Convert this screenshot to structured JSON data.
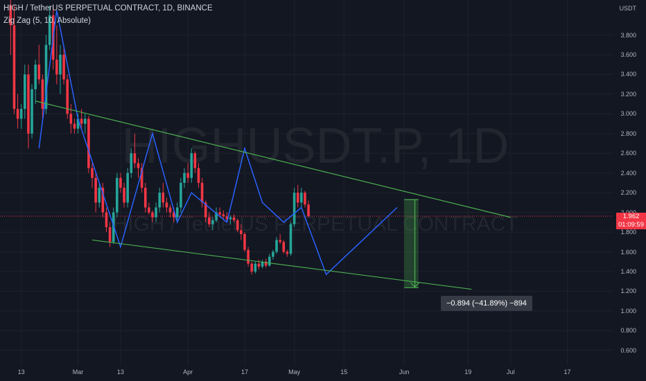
{
  "header": {
    "title": "HIGH / TetherUS PERPETUAL CONTRACT, 1D, BINANCE",
    "indicator": "Zig Zag (5, 10, Absolute)"
  },
  "watermark": {
    "symbol": "HIGHUSDT.P, 1D",
    "name": "HIGH / TetherUS PERPETUAL CONTRACT"
  },
  "price_axis": {
    "currency": "USDT",
    "last_price": "1.962",
    "countdown": "01:09:59"
  },
  "measurement": {
    "label": "−0.894 (−41.89%) −894"
  },
  "colors": {
    "background": "#131722",
    "grid": "#1e222d",
    "up": "#26a69a",
    "down": "#f23645",
    "zigzag": "#2962ff",
    "trendline": "#4caf50",
    "measure_fill": "#4caf50"
  },
  "chart_data": {
    "type": "candlestick",
    "symbol": "HIGH / TetherUS PERPETUAL CONTRACT",
    "interval": "1D",
    "exchange": "BINANCE",
    "ylim": [
      0.5,
      4.05
    ],
    "y_ticks": [
      0.6,
      0.8,
      1.0,
      1.2,
      1.4,
      1.6,
      1.8,
      2.0,
      2.2,
      2.4,
      2.6,
      2.8,
      3.0,
      3.2,
      3.4,
      3.6,
      3.8
    ],
    "y_tick_labels": [
      "0.600",
      "0.800",
      "1.000",
      "1.200",
      "1.400",
      "1.600",
      "1.800",
      "2.000",
      "2.200",
      "2.400",
      "2.600",
      "2.800",
      "3.000",
      "3.200",
      "3.400",
      "3.600",
      "3.800"
    ],
    "x_start": "2023-02-07",
    "x_end": "2023-07-30",
    "x_ticks": [
      {
        "date": "2023-02-13",
        "label": "13"
      },
      {
        "date": "2023-03-01",
        "label": "Mar"
      },
      {
        "date": "2023-03-13",
        "label": "13"
      },
      {
        "date": "2023-04-01",
        "label": "Apr"
      },
      {
        "date": "2023-04-17",
        "label": "17"
      },
      {
        "date": "2023-05-01",
        "label": "May"
      },
      {
        "date": "2023-05-15",
        "label": "15"
      },
      {
        "date": "2023-06-01",
        "label": "Jun"
      },
      {
        "date": "2023-06-19",
        "label": "19"
      },
      {
        "date": "2023-07-01",
        "label": "Jul"
      },
      {
        "date": "2023-07-17",
        "label": "17"
      }
    ],
    "candles_start": "2023-02-10",
    "candles": [
      [
        4.1,
        4.3,
        3.6,
        3.9
      ],
      [
        3.9,
        4.1,
        3.0,
        3.05
      ],
      [
        3.05,
        3.2,
        2.85,
        2.95
      ],
      [
        2.95,
        3.1,
        2.85,
        3.05
      ],
      [
        3.05,
        3.5,
        2.95,
        3.4
      ],
      [
        3.4,
        3.5,
        2.65,
        2.8
      ],
      [
        2.8,
        3.3,
        2.75,
        3.25
      ],
      [
        3.25,
        3.55,
        3.1,
        3.5
      ],
      [
        3.5,
        3.7,
        3.3,
        3.35
      ],
      [
        3.35,
        3.4,
        2.95,
        3.05
      ],
      [
        3.05,
        3.8,
        3.0,
        3.7
      ],
      [
        3.7,
        4.1,
        3.65,
        4.0
      ],
      [
        4.0,
        4.1,
        3.45,
        3.55
      ],
      [
        3.55,
        3.9,
        3.3,
        3.4
      ],
      [
        3.4,
        3.7,
        3.2,
        3.6
      ],
      [
        3.6,
        3.7,
        3.3,
        3.35
      ],
      [
        3.35,
        3.4,
        2.95,
        3.0
      ],
      [
        3.0,
        3.1,
        2.8,
        2.9
      ],
      [
        2.9,
        2.95,
        2.8,
        2.85
      ],
      [
        2.85,
        3.0,
        2.8,
        2.95
      ],
      [
        2.95,
        3.05,
        2.85,
        2.9
      ],
      [
        2.9,
        3.0,
        2.8,
        2.95
      ],
      [
        2.95,
        2.98,
        2.4,
        2.45
      ],
      [
        2.45,
        2.5,
        2.25,
        2.35
      ],
      [
        2.35,
        2.4,
        2.0,
        2.1
      ],
      [
        2.1,
        2.3,
        2.05,
        2.25
      ],
      [
        2.25,
        2.3,
        1.95,
        2.0
      ],
      [
        2.0,
        2.05,
        1.8,
        1.85
      ],
      [
        1.85,
        1.9,
        1.65,
        1.7
      ],
      [
        1.7,
        2.05,
        1.68,
        2.0
      ],
      [
        2.0,
        2.4,
        1.95,
        2.35
      ],
      [
        2.35,
        2.4,
        2.2,
        2.25
      ],
      [
        2.25,
        2.3,
        2.05,
        2.1
      ],
      [
        2.1,
        2.45,
        2.05,
        2.4
      ],
      [
        2.4,
        2.65,
        2.35,
        2.6
      ],
      [
        2.6,
        2.8,
        2.45,
        2.5
      ],
      [
        2.5,
        2.55,
        2.35,
        2.45
      ],
      [
        2.45,
        2.5,
        2.2,
        2.25
      ],
      [
        2.25,
        2.3,
        2.0,
        2.05
      ],
      [
        2.05,
        2.1,
        1.98,
        2.0
      ],
      [
        2.0,
        2.02,
        1.9,
        1.95
      ],
      [
        1.95,
        2.1,
        1.9,
        2.05
      ],
      [
        2.05,
        2.25,
        2.0,
        2.2
      ],
      [
        2.2,
        2.3,
        2.05,
        2.1
      ],
      [
        2.1,
        2.15,
        2.0,
        2.05
      ],
      [
        2.05,
        2.08,
        1.95,
        2.0
      ],
      [
        2.0,
        2.05,
        1.9,
        1.95
      ],
      [
        1.95,
        2.1,
        1.92,
        2.05
      ],
      [
        2.05,
        2.35,
        2.0,
        2.3
      ],
      [
        2.3,
        2.45,
        2.25,
        2.4
      ],
      [
        2.4,
        2.5,
        2.3,
        2.35
      ],
      [
        2.35,
        2.65,
        2.3,
        2.6
      ],
      [
        2.6,
        2.62,
        2.4,
        2.45
      ],
      [
        2.45,
        2.5,
        2.25,
        2.3
      ],
      [
        2.3,
        2.35,
        2.05,
        2.1
      ],
      [
        2.1,
        2.12,
        1.9,
        1.95
      ],
      [
        1.95,
        2.0,
        1.85,
        1.88
      ],
      [
        1.88,
        1.95,
        1.82,
        1.92
      ],
      [
        1.92,
        2.05,
        1.9,
        2.0
      ],
      [
        2.0,
        2.05,
        1.95,
        1.98
      ],
      [
        1.98,
        2.02,
        1.93,
        1.96
      ],
      [
        1.96,
        2.0,
        1.9,
        1.93
      ],
      [
        1.93,
        1.97,
        1.88,
        1.95
      ],
      [
        1.95,
        1.98,
        1.9,
        1.92
      ],
      [
        1.92,
        1.94,
        1.8,
        1.82
      ],
      [
        1.82,
        1.88,
        1.72,
        1.78
      ],
      [
        1.78,
        1.8,
        1.6,
        1.62
      ],
      [
        1.62,
        1.65,
        1.45,
        1.48
      ],
      [
        1.48,
        1.5,
        1.37,
        1.4
      ],
      [
        1.4,
        1.5,
        1.38,
        1.48
      ],
      [
        1.48,
        1.52,
        1.42,
        1.45
      ],
      [
        1.45,
        1.52,
        1.43,
        1.5
      ],
      [
        1.5,
        1.53,
        1.44,
        1.46
      ],
      [
        1.46,
        1.58,
        1.45,
        1.55
      ],
      [
        1.55,
        1.62,
        1.52,
        1.6
      ],
      [
        1.6,
        1.75,
        1.58,
        1.72
      ],
      [
        1.72,
        1.78,
        1.68,
        1.7
      ],
      [
        1.7,
        1.72,
        1.58,
        1.6
      ],
      [
        1.6,
        1.62,
        1.55,
        1.58
      ],
      [
        1.58,
        1.9,
        1.56,
        1.88
      ],
      [
        1.88,
        2.25,
        1.85,
        2.2
      ],
      [
        2.2,
        2.28,
        2.05,
        2.1
      ],
      [
        2.1,
        2.25,
        2.05,
        2.2
      ],
      [
        2.2,
        2.22,
        2.05,
        2.08
      ],
      [
        2.08,
        2.12,
        1.95,
        1.962
      ]
    ],
    "zigzag": [
      [
        "2023-02-18",
        2.65
      ],
      [
        "2023-02-23",
        4.05
      ],
      [
        "2023-03-01",
        2.95
      ],
      [
        "2023-03-13",
        1.65
      ],
      [
        "2023-03-22",
        2.8
      ],
      [
        "2023-03-29",
        1.9
      ],
      [
        "2023-04-02",
        2.2
      ],
      [
        "2023-04-12",
        1.9
      ],
      [
        "2023-04-17",
        2.65
      ],
      [
        "2023-04-22",
        2.1
      ],
      [
        "2023-04-28",
        1.9
      ],
      [
        "2023-05-03",
        2.05
      ],
      [
        "2023-05-10",
        1.37
      ],
      [
        "2023-05-30",
        2.05
      ]
    ],
    "trendlines": [
      {
        "from": [
          "2023-02-17",
          3.13
        ],
        "to": [
          "2023-07-01",
          1.95
        ]
      },
      {
        "from": [
          "2023-03-05",
          1.72
        ],
        "to": [
          "2023-06-20",
          1.22
        ]
      }
    ],
    "measurement": {
      "from": [
        "2023-06-04",
        2.13
      ],
      "to": [
        "2023-06-04",
        1.236
      ],
      "box_from": "2023-06-01",
      "box_to": "2023-06-05",
      "change": -0.894,
      "change_pct": -41.89,
      "ticks": -894
    },
    "last_price": 1.962
  }
}
